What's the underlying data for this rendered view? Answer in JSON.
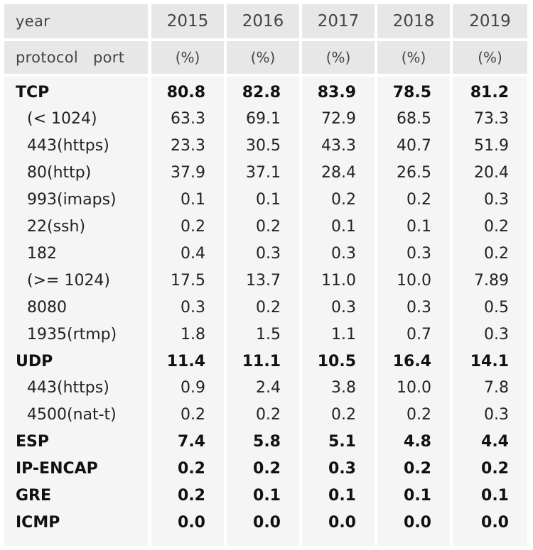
{
  "header": {
    "corner_top": "year",
    "corner_bottom": "protocol   port",
    "years": [
      "2015",
      "2016",
      "2017",
      "2018",
      "2019"
    ],
    "unit": "(%)"
  },
  "rows": [
    {
      "label": "TCP",
      "values": [
        "80.8",
        "82.8",
        "83.9",
        "78.5",
        "81.2"
      ]
    },
    {
      "label": "(< 1024)",
      "values": [
        "63.3",
        "69.1",
        "72.9",
        "68.5",
        "73.3"
      ]
    },
    {
      "label": "443(https)",
      "values": [
        "23.3",
        "30.5",
        "43.3",
        "40.7",
        "51.9"
      ]
    },
    {
      "label": "80(http)",
      "values": [
        "37.9",
        "37.1",
        "28.4",
        "26.5",
        "20.4"
      ]
    },
    {
      "label": "993(imaps)",
      "values": [
        "0.1",
        "0.1",
        "0.2",
        "0.2",
        "0.3"
      ]
    },
    {
      "label": "22(ssh)",
      "values": [
        "0.2",
        "0.2",
        "0.1",
        "0.1",
        "0.2"
      ]
    },
    {
      "label": "182",
      "values": [
        "0.4",
        "0.3",
        "0.3",
        "0.3",
        "0.2"
      ]
    },
    {
      "label": "(>= 1024)",
      "values": [
        "17.5",
        "13.7",
        "11.0",
        "10.0",
        "7.89"
      ]
    },
    {
      "label": "8080",
      "values": [
        "0.3",
        "0.2",
        "0.3",
        "0.3",
        "0.5"
      ]
    },
    {
      "label": "1935(rtmp)",
      "values": [
        "1.8",
        "1.5",
        "1.1",
        "0.7",
        "0.3"
      ]
    },
    {
      "label": "UDP",
      "values": [
        "11.4",
        "11.1",
        "10.5",
        "16.4",
        "14.1"
      ]
    },
    {
      "label": "443(https)",
      "values": [
        "0.9",
        "2.4",
        "3.8",
        "10.0",
        "7.8"
      ]
    },
    {
      "label": "4500(nat-t)",
      "values": [
        "0.2",
        "0.2",
        "0.2",
        "0.2",
        "0.3"
      ]
    },
    {
      "label": "ESP",
      "values": [
        "7.4",
        "5.8",
        "5.1",
        "4.8",
        "4.4"
      ]
    },
    {
      "label": "IP-ENCAP",
      "values": [
        "0.2",
        "0.2",
        "0.3",
        "0.2",
        "0.2"
      ]
    },
    {
      "label": "GRE",
      "values": [
        "0.2",
        "0.1",
        "0.1",
        "0.1",
        "0.1"
      ]
    },
    {
      "label": "ICMP",
      "values": [
        "0.0",
        "0.0",
        "0.0",
        "0.0",
        "0.0"
      ]
    }
  ],
  "chart_data": {
    "type": "table",
    "columns": [
      "2015",
      "2016",
      "2017",
      "2018",
      "2019"
    ],
    "unit": "%",
    "rows": [
      {
        "protocol": "TCP",
        "port": "",
        "values": [
          80.8,
          82.8,
          83.9,
          78.5,
          81.2
        ]
      },
      {
        "protocol": "TCP",
        "port": "(< 1024)",
        "values": [
          63.3,
          69.1,
          72.9,
          68.5,
          73.3
        ]
      },
      {
        "protocol": "TCP",
        "port": "443(https)",
        "values": [
          23.3,
          30.5,
          43.3,
          40.7,
          51.9
        ]
      },
      {
        "protocol": "TCP",
        "port": "80(http)",
        "values": [
          37.9,
          37.1,
          28.4,
          26.5,
          20.4
        ]
      },
      {
        "protocol": "TCP",
        "port": "993(imaps)",
        "values": [
          0.1,
          0.1,
          0.2,
          0.2,
          0.3
        ]
      },
      {
        "protocol": "TCP",
        "port": "22(ssh)",
        "values": [
          0.2,
          0.2,
          0.1,
          0.1,
          0.2
        ]
      },
      {
        "protocol": "TCP",
        "port": "182",
        "values": [
          0.4,
          0.3,
          0.3,
          0.3,
          0.2
        ]
      },
      {
        "protocol": "TCP",
        "port": "(>= 1024)",
        "values": [
          17.5,
          13.7,
          11.0,
          10.0,
          7.89
        ]
      },
      {
        "protocol": "TCP",
        "port": "8080",
        "values": [
          0.3,
          0.2,
          0.3,
          0.3,
          0.5
        ]
      },
      {
        "protocol": "TCP",
        "port": "1935(rtmp)",
        "values": [
          1.8,
          1.5,
          1.1,
          0.7,
          0.3
        ]
      },
      {
        "protocol": "UDP",
        "port": "",
        "values": [
          11.4,
          11.1,
          10.5,
          16.4,
          14.1
        ]
      },
      {
        "protocol": "UDP",
        "port": "443(https)",
        "values": [
          0.9,
          2.4,
          3.8,
          10.0,
          7.8
        ]
      },
      {
        "protocol": "UDP",
        "port": "4500(nat-t)",
        "values": [
          0.2,
          0.2,
          0.2,
          0.2,
          0.3
        ]
      },
      {
        "protocol": "ESP",
        "port": "",
        "values": [
          7.4,
          5.8,
          5.1,
          4.8,
          4.4
        ]
      },
      {
        "protocol": "IP-ENCAP",
        "port": "",
        "values": [
          0.2,
          0.2,
          0.3,
          0.2,
          0.2
        ]
      },
      {
        "protocol": "GRE",
        "port": "",
        "values": [
          0.2,
          0.1,
          0.1,
          0.1,
          0.1
        ]
      },
      {
        "protocol": "ICMP",
        "port": "",
        "values": [
          0.0,
          0.0,
          0.0,
          0.0,
          0.0
        ]
      }
    ]
  }
}
